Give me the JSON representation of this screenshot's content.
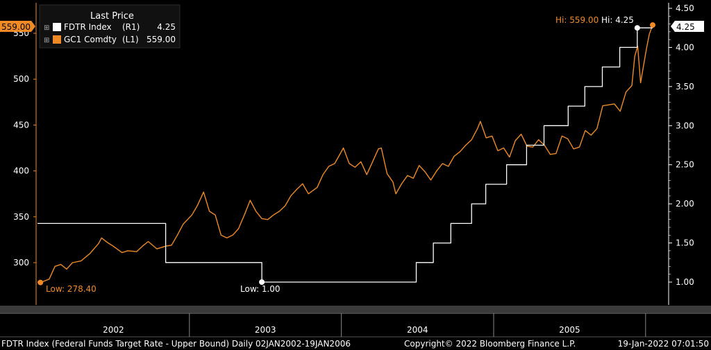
{
  "colors": {
    "gold": "#f08a24",
    "fed": "#ffffff",
    "background": "#000000",
    "axis": "#ffffff",
    "strip": "#3a3a3a"
  },
  "legend": {
    "title": "Last Price",
    "items": [
      {
        "name": "FDTR Index",
        "axis": "(R1)",
        "value": "4.25",
        "color": "#ffffff"
      },
      {
        "name": "GC1 Comdty",
        "axis": "(L1)",
        "value": "559.00",
        "color": "#f08a24"
      }
    ]
  },
  "annotations": {
    "gold_low": "Low: 278.40",
    "fed_low": "Low: 1.00",
    "gold_high": "Hi: 559.00",
    "fed_high": "Hi: 4.25",
    "gold_last_tag": "559.00",
    "fed_last_tag": "4.25"
  },
  "footer": {
    "left": "FDTR Index (Federal Funds Target Rate - Upper Bound)  Daily 02JAN2002-19JAN2006",
    "center": "Copyright© 2022 Bloomberg Finance L.P.",
    "right": "19-Jan-2022 07:01:50"
  },
  "chart_data": {
    "type": "line",
    "title": "",
    "x_range": [
      "2002-01-02",
      "2006-01-19"
    ],
    "x_tick_labels": [
      "2002",
      "2003",
      "2004",
      "2005"
    ],
    "y_left": {
      "label": "",
      "range": [
        255,
        570
      ],
      "ticks": [
        300,
        350,
        400,
        450,
        500,
        550
      ]
    },
    "y_right": {
      "label": "",
      "range": [
        0.68,
        4.5
      ],
      "ticks": [
        1.0,
        1.5,
        2.0,
        2.5,
        3.0,
        3.5,
        4.0,
        4.5
      ],
      "tick_labels": [
        "1.00",
        "1.50",
        "2.00",
        "2.50",
        "3.00",
        "3.50",
        "4.00",
        "4.50"
      ]
    },
    "grid": false,
    "legend_position": "top-left",
    "series": [
      {
        "name": "GC1 Comdty",
        "axis": "left",
        "points": [
          [
            "2002-01-02",
            279
          ],
          [
            "2002-01-09",
            278.4
          ],
          [
            "2002-01-30",
            282
          ],
          [
            "2002-02-13",
            296
          ],
          [
            "2002-02-27",
            298
          ],
          [
            "2002-03-13",
            293
          ],
          [
            "2002-03-27",
            300
          ],
          [
            "2002-04-17",
            302
          ],
          [
            "2002-05-08",
            310
          ],
          [
            "2002-05-29",
            321
          ],
          [
            "2002-06-05",
            327
          ],
          [
            "2002-06-19",
            322
          ],
          [
            "2002-07-03",
            318
          ],
          [
            "2002-07-24",
            311
          ],
          [
            "2002-08-07",
            313
          ],
          [
            "2002-08-28",
            312
          ],
          [
            "2002-09-11",
            318
          ],
          [
            "2002-09-25",
            323
          ],
          [
            "2002-10-16",
            315
          ],
          [
            "2002-11-06",
            318
          ],
          [
            "2002-11-20",
            319
          ],
          [
            "2002-12-04",
            330
          ],
          [
            "2002-12-18",
            342
          ],
          [
            "2003-01-08",
            352
          ],
          [
            "2003-01-22",
            363
          ],
          [
            "2003-02-05",
            377
          ],
          [
            "2003-02-19",
            356
          ],
          [
            "2003-03-05",
            352
          ],
          [
            "2003-03-19",
            330
          ],
          [
            "2003-04-02",
            327
          ],
          [
            "2003-04-16",
            330
          ],
          [
            "2003-04-30",
            337
          ],
          [
            "2003-05-14",
            352
          ],
          [
            "2003-05-28",
            368
          ],
          [
            "2003-06-11",
            356
          ],
          [
            "2003-06-25",
            348
          ],
          [
            "2003-07-09",
            347
          ],
          [
            "2003-07-23",
            352
          ],
          [
            "2003-08-06",
            356
          ],
          [
            "2003-08-20",
            362
          ],
          [
            "2003-09-03",
            373
          ],
          [
            "2003-09-17",
            380
          ],
          [
            "2003-10-01",
            386
          ],
          [
            "2003-10-15",
            375
          ],
          [
            "2003-11-05",
            382
          ],
          [
            "2003-11-19",
            396
          ],
          [
            "2003-12-03",
            405
          ],
          [
            "2003-12-17",
            408
          ],
          [
            "2004-01-07",
            425
          ],
          [
            "2004-01-21",
            408
          ],
          [
            "2004-02-04",
            404
          ],
          [
            "2004-02-18",
            410
          ],
          [
            "2004-03-03",
            396
          ],
          [
            "2004-03-17",
            410
          ],
          [
            "2004-03-31",
            424
          ],
          [
            "2004-04-07",
            425
          ],
          [
            "2004-04-21",
            397
          ],
          [
            "2004-05-05",
            388
          ],
          [
            "2004-05-12",
            375
          ],
          [
            "2004-05-26",
            386
          ],
          [
            "2004-06-09",
            395
          ],
          [
            "2004-06-23",
            392
          ],
          [
            "2004-07-07",
            406
          ],
          [
            "2004-07-21",
            399
          ],
          [
            "2004-08-04",
            390
          ],
          [
            "2004-08-18",
            400
          ],
          [
            "2004-09-01",
            408
          ],
          [
            "2004-09-15",
            405
          ],
          [
            "2004-09-29",
            416
          ],
          [
            "2004-10-13",
            421
          ],
          [
            "2004-10-27",
            428
          ],
          [
            "2004-11-10",
            434
          ],
          [
            "2004-11-24",
            446
          ],
          [
            "2004-12-01",
            454
          ],
          [
            "2004-12-15",
            436
          ],
          [
            "2004-12-29",
            438
          ],
          [
            "2005-01-12",
            422
          ],
          [
            "2005-01-26",
            425
          ],
          [
            "2005-02-09",
            415
          ],
          [
            "2005-02-23",
            433
          ],
          [
            "2005-03-09",
            440
          ],
          [
            "2005-03-23",
            427
          ],
          [
            "2005-04-06",
            426
          ],
          [
            "2005-04-20",
            434
          ],
          [
            "2005-05-04",
            428
          ],
          [
            "2005-05-18",
            418
          ],
          [
            "2005-06-01",
            419
          ],
          [
            "2005-06-15",
            438
          ],
          [
            "2005-06-29",
            435
          ],
          [
            "2005-07-13",
            424
          ],
          [
            "2005-07-27",
            426
          ],
          [
            "2005-08-10",
            444
          ],
          [
            "2005-08-24",
            439
          ],
          [
            "2005-09-07",
            446
          ],
          [
            "2005-09-21",
            471
          ],
          [
            "2005-10-05",
            472
          ],
          [
            "2005-10-19",
            473
          ],
          [
            "2005-11-02",
            465
          ],
          [
            "2005-11-16",
            486
          ],
          [
            "2005-11-30",
            493
          ],
          [
            "2005-12-07",
            525
          ],
          [
            "2005-12-14",
            536
          ],
          [
            "2005-12-21",
            496
          ],
          [
            "2006-01-04",
            533
          ],
          [
            "2006-01-11",
            549
          ],
          [
            "2006-01-19",
            559
          ]
        ]
      },
      {
        "name": "FDTR Index",
        "axis": "right",
        "step": true,
        "points": [
          [
            "2002-01-02",
            1.75
          ],
          [
            "2002-11-06",
            1.75
          ],
          [
            "2002-11-06",
            1.25
          ],
          [
            "2003-06-25",
            1.25
          ],
          [
            "2003-06-25",
            1.0
          ],
          [
            "2004-06-30",
            1.0
          ],
          [
            "2004-06-30",
            1.25
          ],
          [
            "2004-08-10",
            1.25
          ],
          [
            "2004-08-10",
            1.5
          ],
          [
            "2004-09-21",
            1.5
          ],
          [
            "2004-09-21",
            1.75
          ],
          [
            "2004-11-10",
            1.75
          ],
          [
            "2004-11-10",
            2.0
          ],
          [
            "2004-12-14",
            2.0
          ],
          [
            "2004-12-14",
            2.25
          ],
          [
            "2005-02-02",
            2.25
          ],
          [
            "2005-02-02",
            2.5
          ],
          [
            "2005-03-22",
            2.5
          ],
          [
            "2005-03-22",
            2.75
          ],
          [
            "2005-05-03",
            2.75
          ],
          [
            "2005-05-03",
            3.0
          ],
          [
            "2005-06-30",
            3.0
          ],
          [
            "2005-06-30",
            3.25
          ],
          [
            "2005-08-09",
            3.25
          ],
          [
            "2005-08-09",
            3.5
          ],
          [
            "2005-09-20",
            3.5
          ],
          [
            "2005-09-20",
            3.75
          ],
          [
            "2005-11-01",
            3.75
          ],
          [
            "2005-11-01",
            4.0
          ],
          [
            "2005-12-13",
            4.0
          ],
          [
            "2005-12-13",
            4.25
          ],
          [
            "2006-01-19",
            4.25
          ]
        ]
      }
    ]
  }
}
